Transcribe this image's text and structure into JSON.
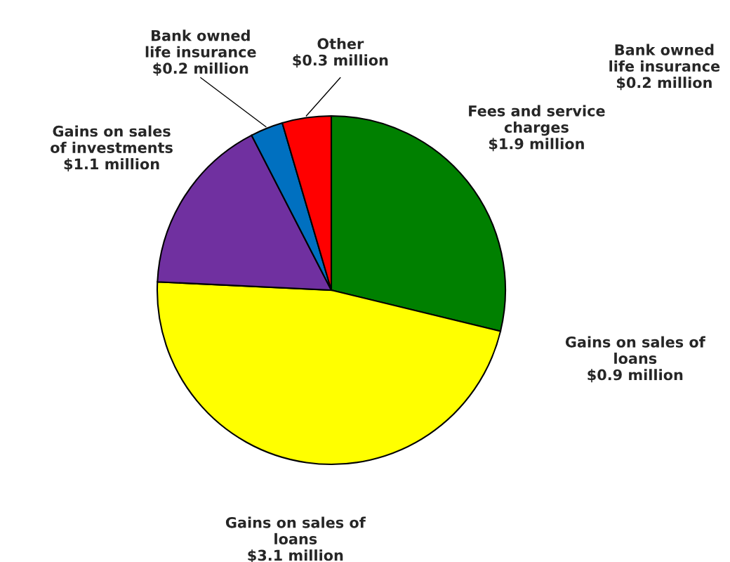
{
  "chart_data": {
    "type": "pie",
    "categories": [
      "Fees and service\ncharges",
      "Gains on sales of\nloans",
      "Gains on sales\nof investments",
      "Bank owned\nlife insurance",
      "Other"
    ],
    "values": [
      1.9,
      3.1,
      1.1,
      0.2,
      0.3
    ],
    "value_labels": [
      "$1.9 million",
      "$3.1 million",
      "$1.1 million",
      "$0.2 million",
      "$0.3 million"
    ],
    "colors": [
      "#008000",
      "#ffff00",
      "#7030a0",
      "#0070c0",
      "#ff0000"
    ],
    "annotations": [
      "Gains on sales of\nloans\n$0.9 million",
      "Bank owned\nlife insurance\n$0.2 million"
    ]
  }
}
